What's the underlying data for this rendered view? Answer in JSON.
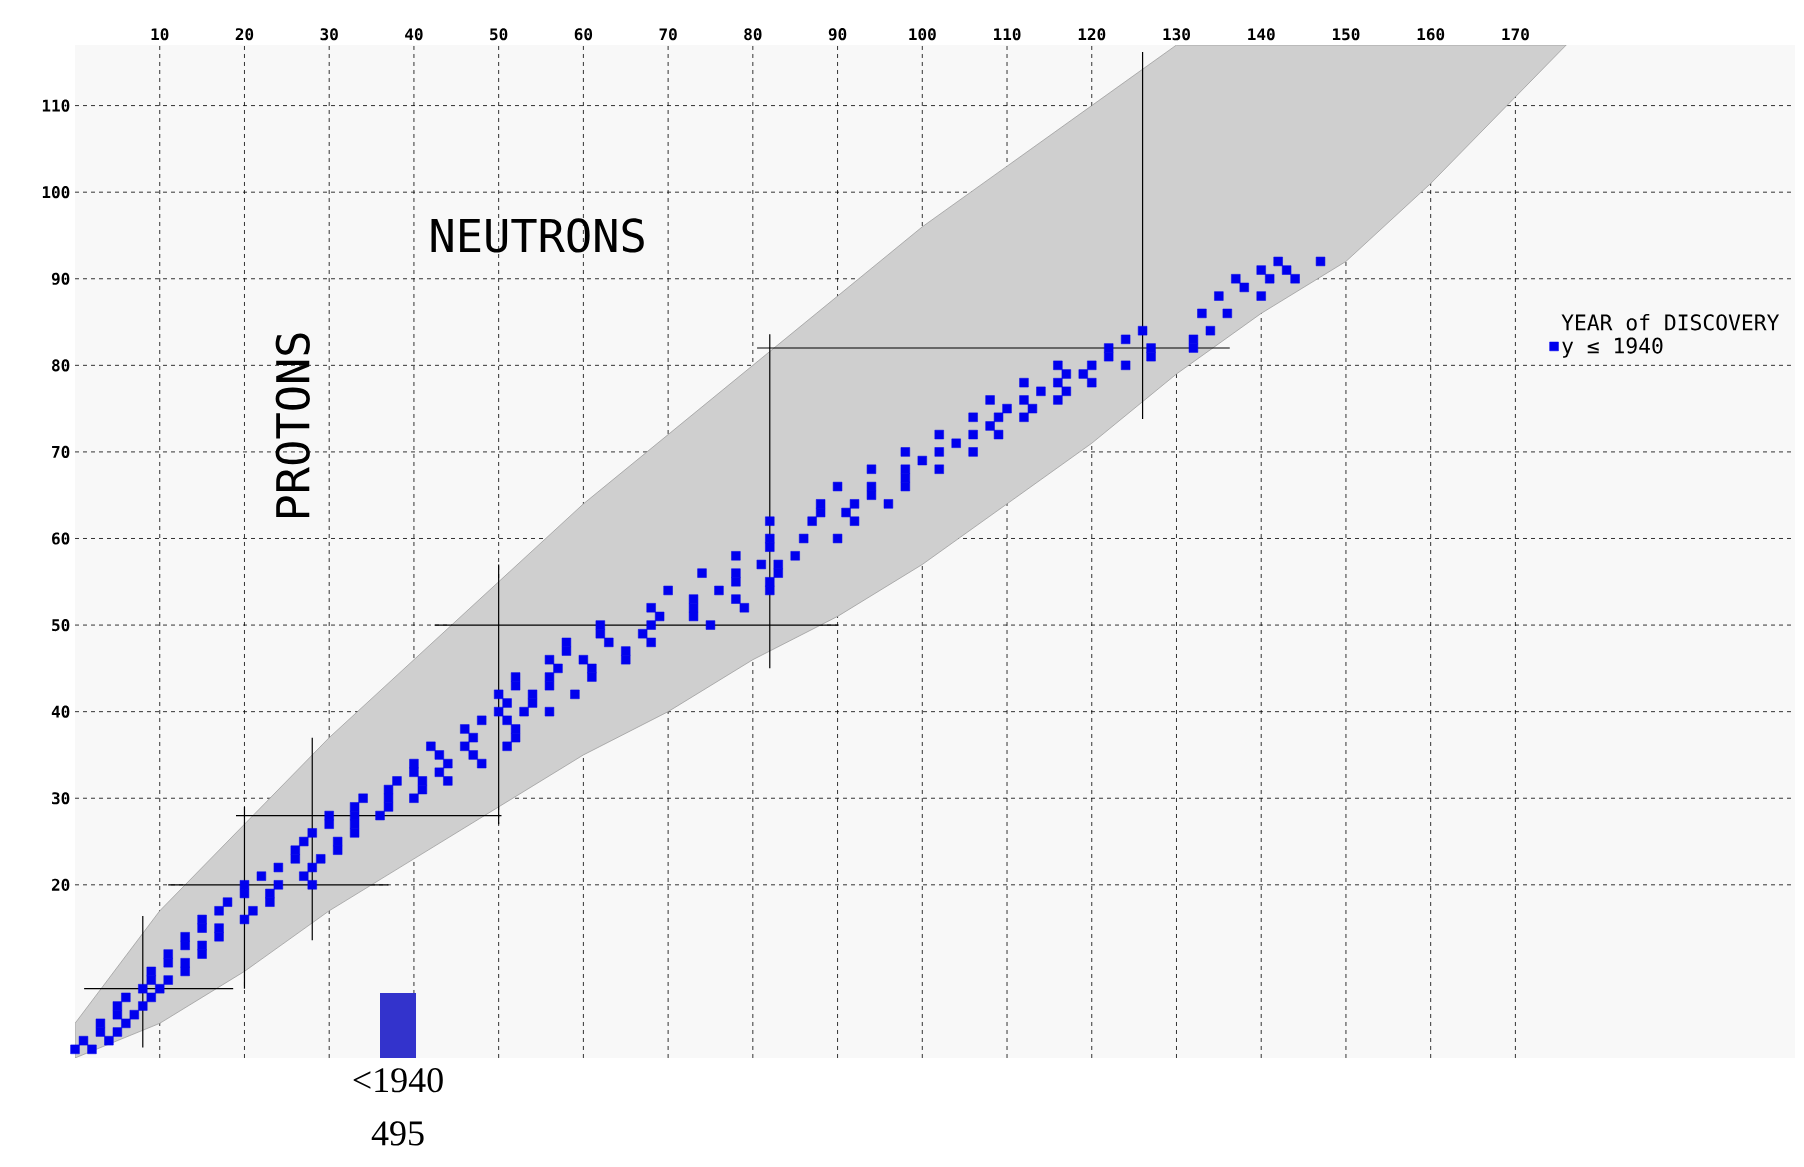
{
  "chart_data": [
    {
      "type": "scatter",
      "xlabel": "NEUTRONS",
      "ylabel": "PROTONS",
      "legend_title": "YEAR of DISCOVERY",
      "xlim": [
        0,
        203
      ],
      "ylim": [
        0,
        117
      ],
      "xticks": [
        10,
        20,
        30,
        40,
        50,
        60,
        70,
        80,
        90,
        100,
        110,
        120,
        130,
        140,
        150,
        160,
        170
      ],
      "yticks": [
        20,
        30,
        40,
        50,
        60,
        70,
        80,
        90,
        100,
        110
      ],
      "grid": true,
      "legend": "right",
      "marker": "square",
      "ref_lines": [
        {
          "axis": "x",
          "value": 8,
          "color": "#000000"
        },
        {
          "axis": "x",
          "value": 20,
          "color": "#000000"
        },
        {
          "axis": "x",
          "value": 28,
          "color": "#000000"
        },
        {
          "axis": "x",
          "value": 50,
          "color": "#000000"
        },
        {
          "axis": "x",
          "value": 82,
          "color": "#000000"
        },
        {
          "axis": "x",
          "value": 126,
          "color": "#000000"
        },
        {
          "axis": "y",
          "value": 8,
          "color": "#000000"
        },
        {
          "axis": "y",
          "value": 20,
          "color": "#000000"
        },
        {
          "axis": "y",
          "value": 28,
          "color": "#000000"
        },
        {
          "axis": "y",
          "value": 50,
          "color": "#000000"
        },
        {
          "axis": "y",
          "value": 82,
          "color": "#000000"
        }
      ],
      "series": [
        {
          "type": "line",
          "color": "#cfcfcf",
          "marker": "none",
          "x": [
            0,
            10,
            20,
            30,
            40,
            50,
            60,
            70,
            80,
            90,
            100,
            110,
            120,
            130,
            140,
            150,
            160,
            170,
            176
          ],
          "values": [
            null,
            null,
            null,
            null,
            null,
            null,
            null,
            null,
            null,
            null,
            null,
            null,
            null,
            null,
            null,
            null,
            null,
            null,
            null
          ],
          "upper": [
            4,
            17,
            27,
            37,
            46,
            55,
            64,
            72,
            80,
            88,
            96,
            103,
            110,
            117,
            117,
            117,
            117,
            117,
            117
          ],
          "lower": [
            0,
            4,
            10,
            17,
            23,
            29,
            35,
            40,
            46,
            51,
            57,
            64,
            71,
            79,
            86,
            92,
            101,
            111,
            117
          ]
        },
        {
          "type": "scatter",
          "name": "y ≤ 1940",
          "color": "#0000ee",
          "x": [
            0,
            2,
            1,
            4,
            3,
            5,
            3,
            6,
            5,
            7,
            5,
            8,
            6,
            9,
            8,
            10,
            9,
            11,
            9,
            13,
            11,
            13,
            11,
            15,
            13,
            15,
            13,
            17,
            15,
            17,
            15,
            20,
            17,
            21,
            18,
            23,
            20,
            23,
            20,
            24,
            28,
            22,
            27,
            24,
            28,
            26,
            29,
            26,
            31,
            27,
            31,
            28,
            33,
            30,
            33,
            30,
            33,
            36,
            33,
            37,
            34,
            37,
            40,
            37,
            41,
            38,
            41,
            44,
            40,
            43,
            40,
            44,
            48,
            43,
            47,
            42,
            46,
            51,
            47,
            52,
            46,
            52,
            48,
            51,
            50,
            53,
            56,
            51,
            54,
            50,
            54,
            59,
            52,
            56,
            52,
            56,
            61,
            57,
            61,
            56,
            60,
            65,
            58,
            65,
            58,
            63,
            68,
            62,
            67,
            62,
            68,
            75,
            69,
            73,
            68,
            73,
            79,
            73,
            78,
            70,
            76,
            82,
            78,
            82,
            74,
            78,
            83,
            81,
            83,
            78,
            85,
            82,
            82,
            86,
            90,
            82,
            87,
            92,
            88,
            91,
            88,
            92,
            96,
            94,
            90,
            94,
            98,
            98,
            94,
            98,
            102,
            100,
            98,
            102,
            106,
            104,
            102,
            106,
            109,
            108,
            106,
            109,
            112,
            110,
            113,
            108,
            112,
            116,
            114,
            117,
            112,
            116,
            120,
            117,
            119,
            116,
            120,
            124,
            122,
            127,
            122,
            127,
            132,
            124,
            132,
            126,
            134,
            133,
            136,
            135,
            140,
            138,
            137,
            141,
            144,
            140,
            143,
            142,
            147
          ],
          "values": [
            1,
            1,
            2,
            2,
            3,
            3,
            4,
            4,
            5,
            5,
            6,
            6,
            7,
            7,
            8,
            8,
            9,
            9,
            10,
            10,
            11,
            11,
            12,
            12,
            13,
            13,
            14,
            14,
            15,
            15,
            16,
            16,
            17,
            17,
            18,
            18,
            19,
            19,
            20,
            20,
            20,
            21,
            21,
            22,
            22,
            23,
            23,
            24,
            24,
            25,
            25,
            26,
            26,
            27,
            27,
            28,
            28,
            28,
            29,
            29,
            30,
            30,
            30,
            31,
            31,
            32,
            32,
            32,
            33,
            33,
            34,
            34,
            34,
            35,
            35,
            36,
            36,
            36,
            37,
            37,
            38,
            38,
            39,
            39,
            40,
            40,
            40,
            41,
            41,
            42,
            42,
            42,
            43,
            43,
            44,
            44,
            44,
            45,
            45,
            46,
            46,
            46,
            47,
            47,
            48,
            48,
            48,
            49,
            49,
            50,
            50,
            50,
            51,
            51,
            52,
            52,
            52,
            53,
            53,
            54,
            54,
            54,
            55,
            55,
            56,
            56,
            56,
            57,
            57,
            58,
            58,
            59,
            60,
            60,
            60,
            62,
            62,
            62,
            63,
            63,
            64,
            64,
            64,
            65,
            66,
            66,
            66,
            67,
            68,
            68,
            68,
            69,
            70,
            70,
            70,
            71,
            72,
            72,
            72,
            73,
            74,
            74,
            74,
            75,
            75,
            76,
            76,
            76,
            77,
            77,
            78,
            78,
            78,
            79,
            79,
            80,
            80,
            80,
            81,
            81,
            82,
            82,
            82,
            83,
            83,
            84,
            84,
            86,
            86,
            88,
            88,
            89,
            90,
            90,
            90,
            91,
            91,
            92,
            92
          ]
        }
      ]
    },
    {
      "type": "bar",
      "categories": [
        "<1940"
      ],
      "values": [
        495
      ],
      "color": "#3333cc",
      "data_labels": true
    }
  ]
}
